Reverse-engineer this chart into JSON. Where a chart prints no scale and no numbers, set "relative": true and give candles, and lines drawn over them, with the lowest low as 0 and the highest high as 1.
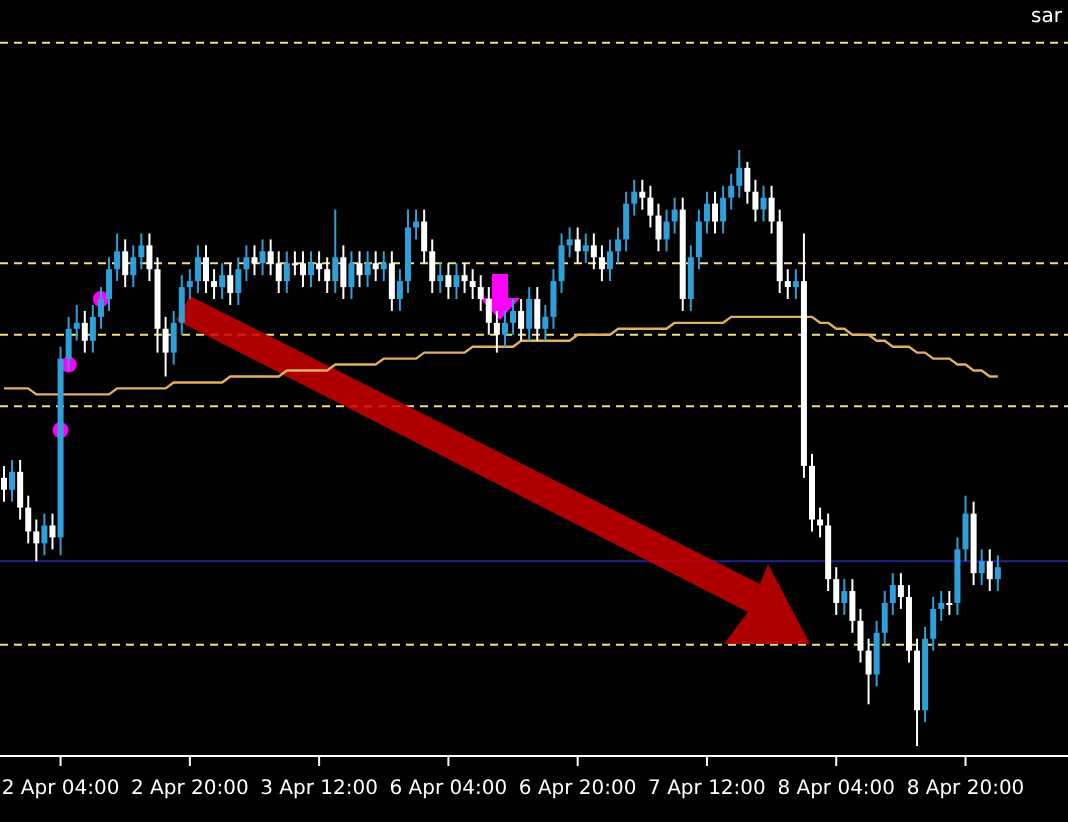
{
  "chart_data": {
    "type": "candlestick",
    "relative": true,
    "annotations": [
      "sar"
    ],
    "colors": [
      "#ffffff",
      "#2e9fd8",
      "#ffffff",
      "#ffffff",
      "#ffffff",
      "#2e9fd8",
      "#ffffff",
      "#2e9fd8",
      "#2e9fd8",
      "#2e9fd8",
      "#ffffff",
      "#2e9fd8",
      "#2e9fd8",
      "#2e9fd8",
      "#2e9fd8",
      "#ffffff",
      "#2e9fd8",
      "#2e9fd8",
      "#ffffff",
      "#ffffff",
      "#ffffff",
      "#2e9fd8",
      "#2e9fd8",
      "#2e9fd8",
      "#2e9fd8",
      "#ffffff",
      "#ffffff",
      "#2e9fd8",
      "#ffffff",
      "#2e9fd8",
      "#2e9fd8",
      "#ffffff",
      "#2e9fd8",
      "#ffffff",
      "#ffffff",
      "#2e9fd8",
      "#ffffff",
      "#ffffff",
      "#2e9fd8",
      "#ffffff",
      "#ffffff",
      "#2e9fd8",
      "#ffffff",
      "#2e9fd8",
      "#ffffff",
      "#2e9fd8",
      "#ffffff",
      "#2e9fd8",
      "#ffffff",
      "#2e9fd8",
      "#2e9fd8",
      "#2e9fd8",
      "#ffffff",
      "#ffffff",
      "#2e9fd8",
      "#ffffff",
      "#2e9fd8",
      "#ffffff",
      "#ffffff",
      "#ffffff",
      "#ffffff",
      "#ffffff",
      "#2e9fd8",
      "#2e9fd8",
      "#ffffff",
      "#2e9fd8",
      "#ffffff",
      "#2e9fd8",
      "#2e9fd8",
      "#2e9fd8",
      "#2e9fd8",
      "#ffffff",
      "#2e9fd8",
      "#ffffff",
      "#ffffff",
      "#2e9fd8",
      "#2e9fd8",
      "#2e9fd8",
      "#2e9fd8",
      "#ffffff",
      "#ffffff",
      "#ffffff",
      "#2e9fd8",
      "#2e9fd8",
      "#ffffff",
      "#2e9fd8",
      "#2e9fd8",
      "#2e9fd8",
      "#ffffff",
      "#2e9fd8",
      "#2e9fd8",
      "#2e9fd8",
      "#ffffff",
      "#ffffff",
      "#2e9fd8",
      "#ffffff",
      "#ffffff",
      "#ffffff",
      "#2e9fd8",
      "#ffffff",
      "#ffffff",
      "#ffffff",
      "#ffffff",
      "#ffffff",
      "#2e9fd8",
      "#ffffff",
      "#ffffff",
      "#ffffff",
      "#2e9fd8",
      "#2e9fd8",
      "#2e9fd8",
      "#ffffff",
      "#ffffff",
      "#ffffff",
      "#2e9fd8",
      "#2e9fd8",
      "#2e9fd8",
      "#ffffff",
      "#2e9fd8",
      "#2e9fd8",
      "#ffffff",
      "#2e9fd8",
      "#ffffff",
      "#2e9fd8"
    ],
    "categories": [
      null,
      null,
      null,
      null,
      null,
      null,
      null,
      "2 Apr 04:00",
      null,
      null,
      null,
      null,
      null,
      null,
      null,
      null,
      null,
      null,
      null,
      null,
      null,
      null,
      null,
      "2 Apr 20:00",
      null,
      null,
      null,
      null,
      null,
      null,
      null,
      null,
      null,
      null,
      null,
      null,
      null,
      null,
      null,
      "3 Apr 12:00",
      null,
      null,
      null,
      null,
      null,
      null,
      null,
      null,
      null,
      null,
      null,
      null,
      null,
      null,
      null,
      "6 Apr 04:00",
      null,
      null,
      null,
      null,
      null,
      null,
      null,
      null,
      null,
      null,
      null,
      null,
      null,
      null,
      null,
      "6 Apr 20:00",
      null,
      null,
      null,
      null,
      null,
      null,
      null,
      null,
      null,
      null,
      null,
      null,
      null,
      null,
      null,
      "7 Apr 12:00",
      null,
      null,
      null,
      null,
      null,
      null,
      null,
      null,
      null,
      null,
      null,
      null,
      null,
      null,
      null,
      "8 Apr 04:00",
      null,
      null,
      null,
      null,
      null,
      null,
      null,
      null,
      null,
      null,
      null,
      null,
      null,
      null,
      null,
      "8 Apr 20:00",
      null,
      null,
      null,
      null
    ],
    "ohlc": [
      [
        0.45,
        0.47,
        0.41,
        0.43
      ],
      [
        0.43,
        0.48,
        0.41,
        0.46
      ],
      [
        0.46,
        0.48,
        0.38,
        0.4
      ],
      [
        0.4,
        0.42,
        0.34,
        0.36
      ],
      [
        0.36,
        0.38,
        0.31,
        0.34
      ],
      [
        0.34,
        0.39,
        0.32,
        0.37
      ],
      [
        0.37,
        0.39,
        0.33,
        0.35
      ],
      [
        0.35,
        0.67,
        0.32,
        0.65
      ],
      [
        0.65,
        0.72,
        0.63,
        0.7
      ],
      [
        0.7,
        0.74,
        0.68,
        0.71
      ],
      [
        0.71,
        0.73,
        0.66,
        0.68
      ],
      [
        0.68,
        0.74,
        0.66,
        0.72
      ],
      [
        0.72,
        0.77,
        0.7,
        0.75
      ],
      [
        0.75,
        0.82,
        0.73,
        0.8
      ],
      [
        0.8,
        0.86,
        0.78,
        0.83
      ],
      [
        0.83,
        0.85,
        0.77,
        0.79
      ],
      [
        0.79,
        0.84,
        0.77,
        0.82
      ],
      [
        0.82,
        0.86,
        0.8,
        0.84
      ],
      [
        0.84,
        0.86,
        0.78,
        0.8
      ],
      [
        0.8,
        0.82,
        0.66,
        0.7
      ],
      [
        0.7,
        0.72,
        0.62,
        0.66
      ],
      [
        0.66,
        0.73,
        0.64,
        0.71
      ],
      [
        0.71,
        0.79,
        0.69,
        0.77
      ],
      [
        0.77,
        0.8,
        0.75,
        0.78
      ],
      [
        0.78,
        0.84,
        0.76,
        0.82
      ],
      [
        0.82,
        0.84,
        0.76,
        0.78
      ],
      [
        0.78,
        0.8,
        0.75,
        0.77
      ],
      [
        0.77,
        0.81,
        0.75,
        0.79
      ],
      [
        0.79,
        0.81,
        0.74,
        0.76
      ],
      [
        0.76,
        0.82,
        0.74,
        0.8
      ],
      [
        0.8,
        0.84,
        0.78,
        0.82
      ],
      [
        0.82,
        0.84,
        0.79,
        0.81
      ],
      [
        0.81,
        0.85,
        0.79,
        0.83
      ],
      [
        0.83,
        0.85,
        0.79,
        0.81
      ],
      [
        0.81,
        0.83,
        0.76,
        0.78
      ],
      [
        0.78,
        0.83,
        0.76,
        0.81
      ],
      [
        0.81,
        0.83,
        0.79,
        0.81
      ],
      [
        0.81,
        0.83,
        0.77,
        0.79
      ],
      [
        0.79,
        0.83,
        0.77,
        0.81
      ],
      [
        0.81,
        0.83,
        0.78,
        0.8
      ],
      [
        0.8,
        0.82,
        0.76,
        0.78
      ],
      [
        0.78,
        0.9,
        0.76,
        0.82
      ],
      [
        0.82,
        0.84,
        0.75,
        0.77
      ],
      [
        0.77,
        0.83,
        0.75,
        0.81
      ],
      [
        0.81,
        0.83,
        0.77,
        0.79
      ],
      [
        0.79,
        0.83,
        0.77,
        0.81
      ],
      [
        0.81,
        0.83,
        0.78,
        0.8
      ],
      [
        0.8,
        0.83,
        0.78,
        0.81
      ],
      [
        0.81,
        0.83,
        0.73,
        0.75
      ],
      [
        0.75,
        0.8,
        0.73,
        0.78
      ],
      [
        0.78,
        0.9,
        0.76,
        0.87
      ],
      [
        0.87,
        0.9,
        0.85,
        0.88
      ],
      [
        0.88,
        0.9,
        0.81,
        0.83
      ],
      [
        0.83,
        0.85,
        0.76,
        0.78
      ],
      [
        0.78,
        0.81,
        0.76,
        0.79
      ],
      [
        0.79,
        0.81,
        0.75,
        0.77
      ],
      [
        0.77,
        0.81,
        0.75,
        0.79
      ],
      [
        0.79,
        0.81,
        0.76,
        0.78
      ],
      [
        0.78,
        0.8,
        0.75,
        0.77
      ],
      [
        0.77,
        0.79,
        0.73,
        0.75
      ],
      [
        0.75,
        0.77,
        0.69,
        0.71
      ],
      [
        0.71,
        0.73,
        0.66,
        0.69
      ],
      [
        0.69,
        0.73,
        0.67,
        0.71
      ],
      [
        0.71,
        0.75,
        0.69,
        0.73
      ],
      [
        0.73,
        0.75,
        0.68,
        0.7
      ],
      [
        0.7,
        0.77,
        0.68,
        0.75
      ],
      [
        0.75,
        0.77,
        0.68,
        0.7
      ],
      [
        0.7,
        0.74,
        0.68,
        0.72
      ],
      [
        0.72,
        0.8,
        0.7,
        0.78
      ],
      [
        0.78,
        0.86,
        0.76,
        0.84
      ],
      [
        0.84,
        0.87,
        0.82,
        0.85
      ],
      [
        0.85,
        0.87,
        0.81,
        0.83
      ],
      [
        0.83,
        0.86,
        0.81,
        0.84
      ],
      [
        0.84,
        0.86,
        0.8,
        0.82
      ],
      [
        0.82,
        0.84,
        0.78,
        0.8
      ],
      [
        0.8,
        0.85,
        0.78,
        0.83
      ],
      [
        0.83,
        0.87,
        0.81,
        0.85
      ],
      [
        0.85,
        0.93,
        0.83,
        0.91
      ],
      [
        0.91,
        0.95,
        0.89,
        0.93
      ],
      [
        0.93,
        0.95,
        0.9,
        0.92
      ],
      [
        0.92,
        0.94,
        0.87,
        0.89
      ],
      [
        0.89,
        0.91,
        0.83,
        0.85
      ],
      [
        0.85,
        0.9,
        0.83,
        0.88
      ],
      [
        0.88,
        0.92,
        0.86,
        0.9
      ],
      [
        0.9,
        0.92,
        0.73,
        0.75
      ],
      [
        0.75,
        0.84,
        0.73,
        0.82
      ],
      [
        0.82,
        0.9,
        0.8,
        0.88
      ],
      [
        0.88,
        0.93,
        0.86,
        0.91
      ],
      [
        0.91,
        0.93,
        0.86,
        0.88
      ],
      [
        0.88,
        0.94,
        0.86,
        0.92
      ],
      [
        0.92,
        0.96,
        0.9,
        0.94
      ],
      [
        0.94,
        1.0,
        0.92,
        0.97
      ],
      [
        0.97,
        0.98,
        0.91,
        0.93
      ],
      [
        0.93,
        0.95,
        0.88,
        0.9
      ],
      [
        0.9,
        0.94,
        0.88,
        0.92
      ],
      [
        0.92,
        0.94,
        0.86,
        0.88
      ],
      [
        0.88,
        0.9,
        0.76,
        0.78
      ],
      [
        0.78,
        0.8,
        0.75,
        0.77
      ],
      [
        0.77,
        0.8,
        0.75,
        0.78
      ],
      [
        0.78,
        0.86,
        0.45,
        0.47
      ],
      [
        0.47,
        0.49,
        0.36,
        0.38
      ],
      [
        0.38,
        0.4,
        0.35,
        0.37
      ],
      [
        0.37,
        0.39,
        0.26,
        0.28
      ],
      [
        0.28,
        0.3,
        0.22,
        0.24
      ],
      [
        0.24,
        0.28,
        0.22,
        0.26
      ],
      [
        0.26,
        0.28,
        0.19,
        0.21
      ],
      [
        0.21,
        0.23,
        0.14,
        0.16
      ],
      [
        0.16,
        0.18,
        0.07,
        0.12
      ],
      [
        0.12,
        0.21,
        0.1,
        0.19
      ],
      [
        0.19,
        0.26,
        0.17,
        0.24
      ],
      [
        0.24,
        0.29,
        0.22,
        0.27
      ],
      [
        0.27,
        0.29,
        0.23,
        0.25
      ],
      [
        0.25,
        0.27,
        0.14,
        0.16
      ],
      [
        0.16,
        0.18,
        0.0,
        0.06
      ],
      [
        0.06,
        0.2,
        0.04,
        0.18
      ],
      [
        0.18,
        0.25,
        0.16,
        0.23
      ],
      [
        0.23,
        0.26,
        0.21,
        0.24
      ],
      [
        0.24,
        0.26,
        0.22,
        0.24
      ],
      [
        0.24,
        0.35,
        0.22,
        0.33
      ],
      [
        0.33,
        0.42,
        0.31,
        0.39
      ],
      [
        0.39,
        0.41,
        0.27,
        0.29
      ],
      [
        0.29,
        0.33,
        0.27,
        0.31
      ],
      [
        0.31,
        0.33,
        0.26,
        0.28
      ],
      [
        0.28,
        0.32,
        0.26,
        0.3
      ]
    ],
    "series": [
      {
        "type": "line",
        "color": "#e0b060",
        "values": [
          0.6,
          0.6,
          0.6,
          0.6,
          0.59,
          0.59,
          0.59,
          0.59,
          0.59,
          0.59,
          0.59,
          0.59,
          0.59,
          0.59,
          0.6,
          0.6,
          0.6,
          0.6,
          0.6,
          0.6,
          0.6,
          0.61,
          0.61,
          0.61,
          0.61,
          0.61,
          0.61,
          0.61,
          0.62,
          0.62,
          0.62,
          0.62,
          0.62,
          0.62,
          0.62,
          0.63,
          0.63,
          0.63,
          0.63,
          0.63,
          0.63,
          0.64,
          0.64,
          0.64,
          0.64,
          0.64,
          0.64,
          0.65,
          0.65,
          0.65,
          0.65,
          0.65,
          0.66,
          0.66,
          0.66,
          0.66,
          0.66,
          0.66,
          0.67,
          0.67,
          0.67,
          0.67,
          0.67,
          0.67,
          0.68,
          0.68,
          0.68,
          0.68,
          0.68,
          0.68,
          0.68,
          0.69,
          0.69,
          0.69,
          0.69,
          0.69,
          0.7,
          0.7,
          0.7,
          0.7,
          0.7,
          0.7,
          0.7,
          0.71,
          0.71,
          0.71,
          0.71,
          0.71,
          0.71,
          0.71,
          0.72,
          0.72,
          0.72,
          0.72,
          0.72,
          0.72,
          0.72,
          0.72,
          0.72,
          0.72,
          0.72,
          0.71,
          0.71,
          0.7,
          0.7,
          0.69,
          0.69,
          0.69,
          0.68,
          0.68,
          0.67,
          0.67,
          0.67,
          0.66,
          0.66,
          0.65,
          0.65,
          0.65,
          0.64,
          0.64,
          0.63,
          0.63,
          0.62,
          0.62
        ]
      },
      {
        "type": "scatter",
        "color": "#ff00ff",
        "marker": "circle",
        "values": [
          null,
          null,
          null,
          null,
          null,
          null,
          null,
          0.53,
          0.64,
          null,
          null,
          null,
          0.75,
          null,
          null,
          null,
          null,
          null,
          null,
          null,
          null,
          null,
          null,
          null,
          null,
          null,
          null,
          null,
          null,
          null,
          null,
          null,
          null,
          null,
          null,
          null,
          null,
          null,
          null,
          null,
          null,
          null,
          null,
          null,
          null,
          null,
          null,
          null,
          null,
          null,
          null,
          null,
          null,
          null,
          null,
          null,
          null,
          null,
          null,
          null,
          null,
          null,
          null,
          null,
          null,
          null,
          null,
          null,
          null,
          null,
          null,
          null,
          null,
          null,
          null,
          null,
          null,
          null,
          null,
          null,
          null,
          null,
          null,
          null,
          null,
          null,
          null,
          null,
          null,
          null,
          null,
          null,
          null,
          null,
          null,
          null,
          null,
          null,
          null,
          null,
          null,
          null,
          null,
          null,
          null,
          null,
          null,
          null,
          null,
          null,
          null,
          null,
          null,
          null,
          null,
          null,
          null,
          null,
          null,
          null,
          null,
          null,
          null,
          null
        ]
      }
    ],
    "ref_lines": [
      {
        "axis": "y",
        "value": 1.18,
        "color": "#f0e080",
        "line_style": "dashed"
      },
      {
        "axis": "y",
        "value": 0.81,
        "color": "#f0e080",
        "line_style": "dashed"
      },
      {
        "axis": "y",
        "value": 0.69,
        "color": "#f0e080",
        "line_style": "dashed"
      },
      {
        "axis": "y",
        "value": 0.57,
        "color": "#f0e080",
        "line_style": "dashed"
      },
      {
        "axis": "y",
        "value": 0.31,
        "color": "#22228c",
        "line_style": "solid"
      },
      {
        "axis": "y",
        "value": 0.17,
        "color": "#f0e080",
        "line_style": "dashed"
      }
    ]
  }
}
